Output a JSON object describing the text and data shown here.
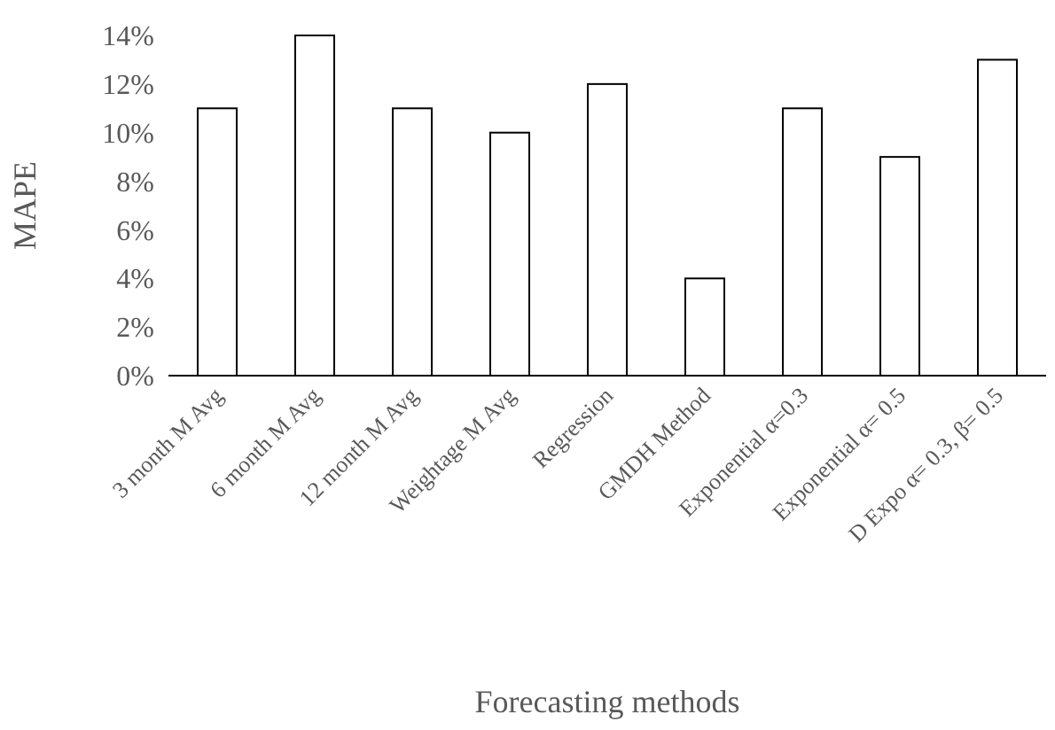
{
  "chart_data": {
    "type": "bar",
    "xlabel": "Forecasting methods",
    "ylabel": "MAPE",
    "categories": [
      "3 month M Avg",
      "6 month M Avg",
      "12 month M Avg",
      "Weightage M Avg",
      "Regression",
      "GMDH Method",
      "Exponential α=0.3",
      "Exponential α= 0.5",
      "D Expo α= 0.3, β= 0.5"
    ],
    "values": [
      11,
      14,
      11,
      10,
      12,
      4,
      11,
      9,
      13
    ],
    "color": "#ffffff",
    "ylim": [
      0,
      14
    ],
    "yticks": [
      {
        "value": 0,
        "label": "0%"
      },
      {
        "value": 2,
        "label": "2%"
      },
      {
        "value": 4,
        "label": "4%"
      },
      {
        "value": 6,
        "label": "6%"
      },
      {
        "value": 8,
        "label": "8%"
      },
      {
        "value": 10,
        "label": "10%"
      },
      {
        "value": 12,
        "label": "12%"
      },
      {
        "value": 14,
        "label": "14%"
      }
    ],
    "grid": false
  }
}
